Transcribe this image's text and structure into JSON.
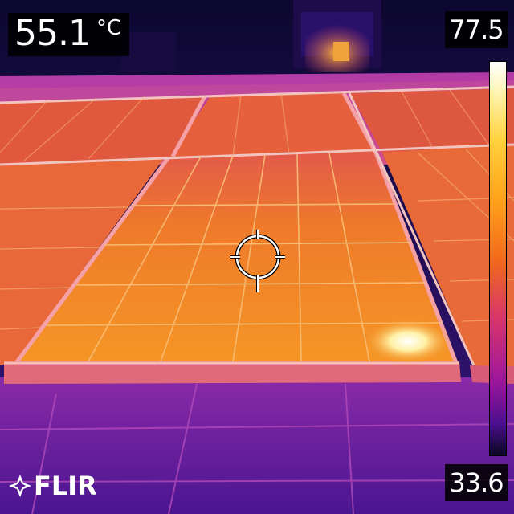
{
  "camera": {
    "spot_temperature": "55.1",
    "unit": "°C",
    "scale_max": "77.5",
    "scale_min": "33.6",
    "brand": "FLIR"
  },
  "icons": {
    "crosshair": "crosshair-icon",
    "logo": "flir-logo-icon"
  },
  "palette": {
    "hot": "#ffe27a",
    "warm": "#f28a1e",
    "mid": "#d94a6a",
    "cool": "#8a1fa8",
    "cold": "#2a0f63"
  }
}
